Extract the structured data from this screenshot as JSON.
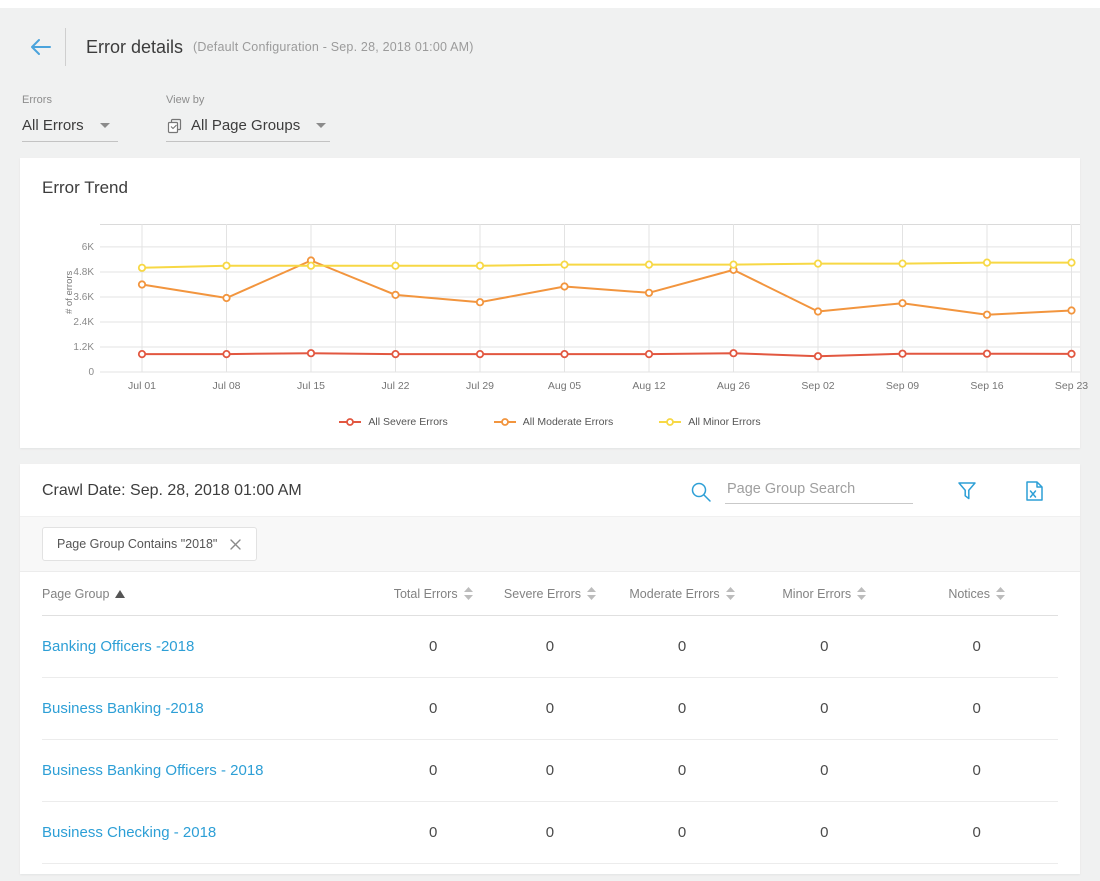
{
  "header": {
    "title": "Error details",
    "subtitle": "(Default Configuration - Sep. 28, 2018 01:00 AM)"
  },
  "filters": {
    "errors": {
      "label": "Errors",
      "value": "All Errors"
    },
    "view_by": {
      "label": "View by",
      "value": "All Page Groups"
    }
  },
  "chart": {
    "title": "Error Trend"
  },
  "chart_data": {
    "type": "line",
    "title": "Error Trend",
    "xlabel": "",
    "ylabel": "# of errors",
    "x": [
      "Jul 01",
      "Jul 08",
      "Jul 15",
      "Jul 22",
      "Jul 29",
      "Aug 05",
      "Aug 12",
      "Aug 26",
      "Sep 02",
      "Sep 09",
      "Sep 16",
      "Sep 23"
    ],
    "y_ticks": {
      "labels": [
        "0",
        "1.2K",
        "2.4K",
        "3.6K",
        "4.8K",
        "6K"
      ],
      "values": [
        0,
        1200,
        2400,
        3600,
        4800,
        6000
      ]
    },
    "ylim": [
      0,
      7100
    ],
    "grid": true,
    "legend_position": "bottom",
    "series": [
      {
        "name": "All Severe Errors",
        "color": "#e25740",
        "values": [
          860,
          860,
          900,
          860,
          860,
          860,
          860,
          900,
          760,
          880,
          880,
          870
        ]
      },
      {
        "name": "All Moderate Errors",
        "color": "#f2953e",
        "values": [
          4200,
          3550,
          5350,
          3700,
          3350,
          4100,
          3800,
          4900,
          2900,
          3300,
          2750,
          2950
        ]
      },
      {
        "name": "All Minor Errors",
        "color": "#f7d845",
        "values": [
          5000,
          5100,
          5100,
          5100,
          5100,
          5150,
          5150,
          5150,
          5200,
          5200,
          5250,
          5250
        ]
      }
    ]
  },
  "table": {
    "crawl_date": "Crawl Date: Sep. 28, 2018 01:00 AM",
    "search_placeholder": "Page Group Search",
    "filter_chip": "Page Group Contains \"2018\"",
    "columns": [
      {
        "label": "Page Group",
        "sort": "asc"
      },
      {
        "label": "Total Errors",
        "sort": "none"
      },
      {
        "label": "Severe Errors",
        "sort": "none"
      },
      {
        "label": "Moderate Errors",
        "sort": "none"
      },
      {
        "label": "Minor Errors",
        "sort": "none"
      },
      {
        "label": "Notices",
        "sort": "none"
      }
    ],
    "rows": [
      {
        "page_group": "Banking Officers -2018",
        "values": [
          "0",
          "0",
          "0",
          "0",
          "0"
        ]
      },
      {
        "page_group": "Business Banking -2018",
        "values": [
          "0",
          "0",
          "0",
          "0",
          "0"
        ]
      },
      {
        "page_group": "Business Banking Officers - 2018",
        "values": [
          "0",
          "0",
          "0",
          "0",
          "0"
        ]
      },
      {
        "page_group": "Business Checking - 2018",
        "values": [
          "0",
          "0",
          "0",
          "0",
          "0"
        ]
      }
    ]
  },
  "colors": {
    "accent": "#2d9fd6",
    "grid": "#e3e3e3"
  }
}
